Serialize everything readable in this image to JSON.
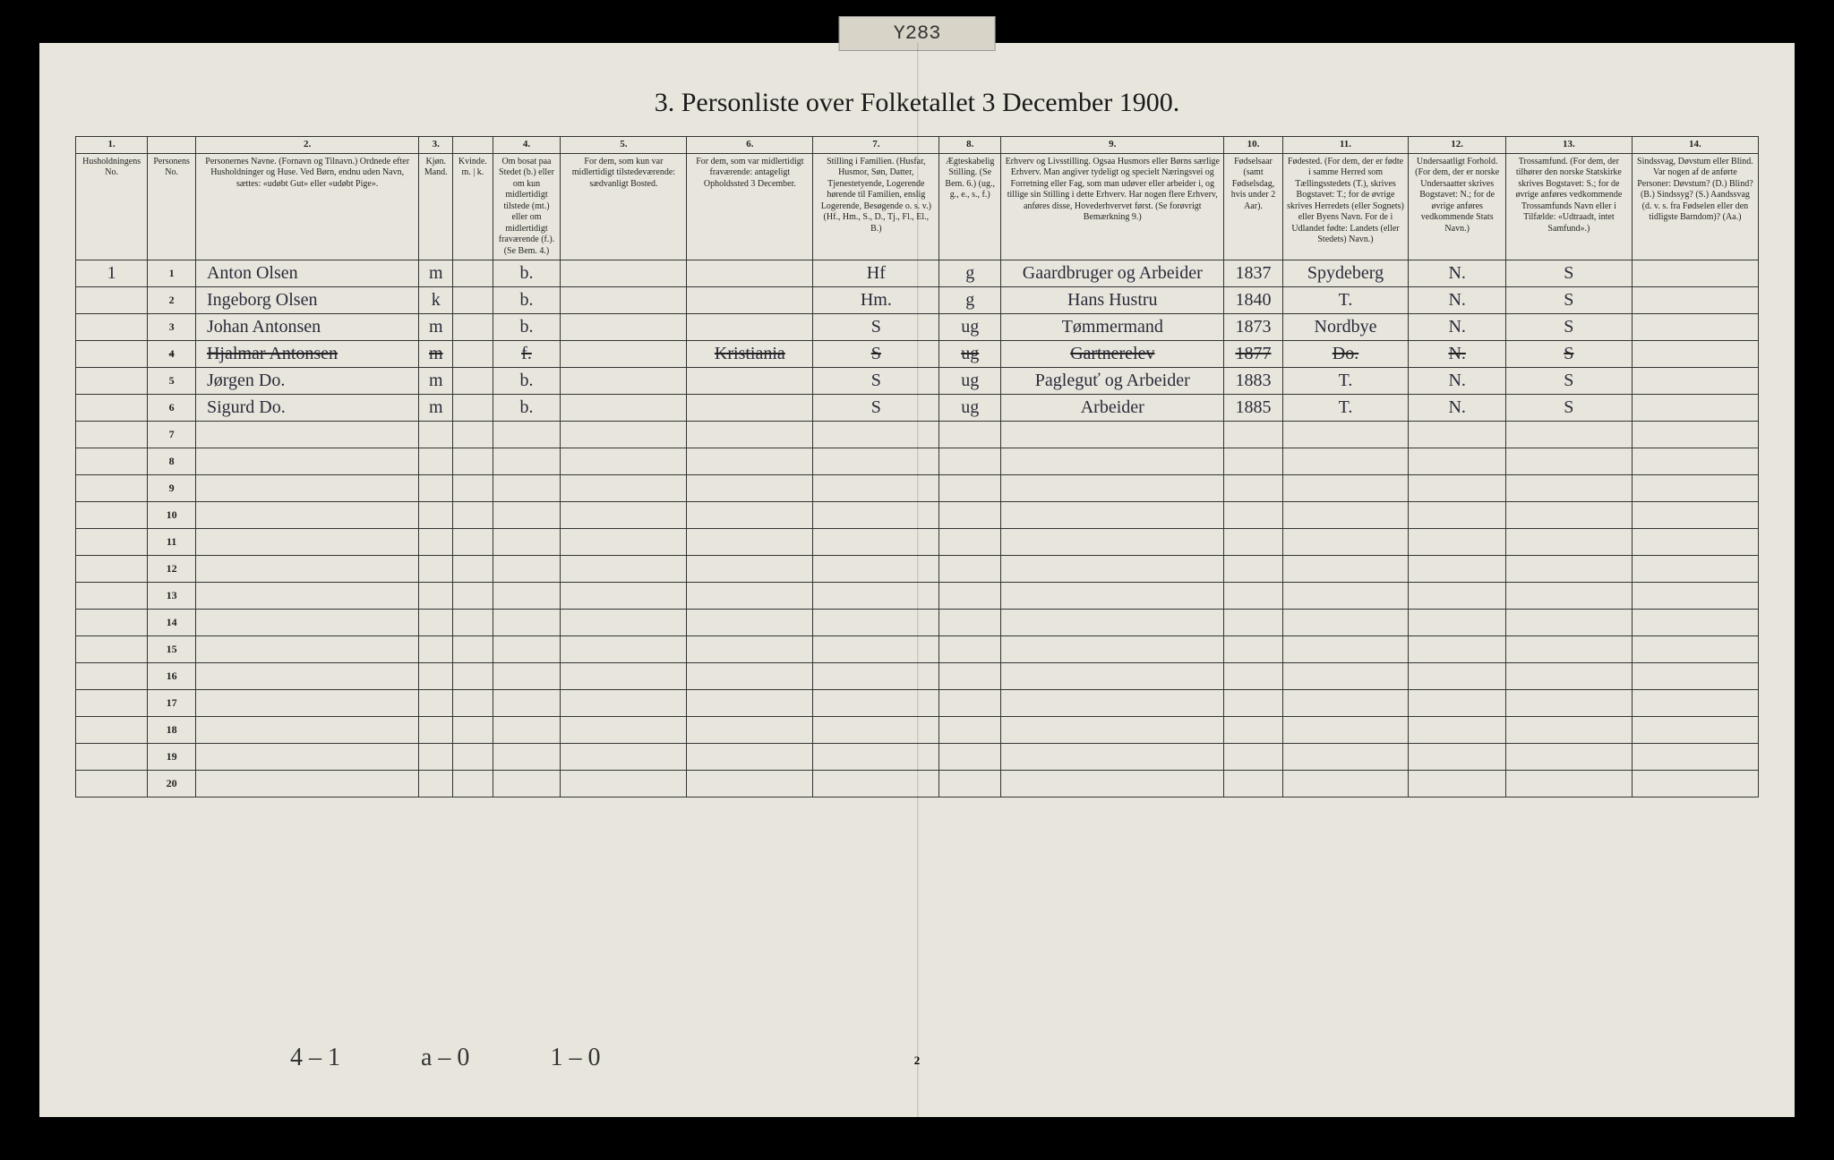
{
  "tab_label": "Y283",
  "title": "3. Personliste over Folketallet 3 December 1900.",
  "page_number": "2",
  "footer_tallies": [
    "4 – 1",
    "a – 0",
    "1 – 0"
  ],
  "column_numbers": [
    "1.",
    "",
    "2.",
    "3.",
    "",
    "4.",
    "5.",
    "6.",
    "7.",
    "8.",
    "9.",
    "10.",
    "11.",
    "12.",
    "13.",
    "14."
  ],
  "headers": [
    "Husholdningens No.",
    "Personens No.",
    "Personernes Navne.\n(Fornavn og Tilnavn.)\nOrdnede efter Husholdninger og Huse.\nVed Børn, endnu uden Navn, sættes: «udøbt Gut» eller «udøbt Pige».",
    "Kjøn.\nMand.",
    "Kvinde.\nm. | k.",
    "Om bosat paa Stedet (b.) eller om kun midlertidigt tilstede (mt.) eller om midlertidigt fraværende (f.). (Se Bem. 4.)",
    "For dem, som kun var midlertidigt tilstedeværende:\nsædvanligt Bosted.",
    "For dem, som var midlertidigt fraværende:\nantageligt Opholdssted 3 December.",
    "Stilling i Familien.\n(Husfar, Husmor, Søn, Datter, Tjenestetyende, Logerende hørende til Familien, enslig Logerende, Besøgende o. s. v.)\n(Hf., Hm., S., D., Tj., Fl., El., B.)",
    "Ægteskabelig Stilling.\n(Se Bem. 6.)\n(ug., g., e., s., f.)",
    "Erhverv og Livsstilling.\nOgsaa Husmors eller Børns særlige Erhverv. Man angiver tydeligt og specielt Næringsvei og Forretning eller Fag, som man udøver eller arbeider i, og tillige sin Stilling i dette Erhverv. Har nogen flere Erhverv, anføres disse, Hovederhvervet først.\n(Se forøvrigt Bemærkning 9.)",
    "Fødselsaar\n(samt Fødselsdag, hvis under 2 Aar).",
    "Fødested.\n(For dem, der er fødte i samme Herred som Tællingsstedets (T.), skrives Bogstavet: T.; for de øvrige skrives Herredets (eller Sognets) eller Byens Navn. For de i Udlandet fødte: Landets (eller Stedets) Navn.)",
    "Undersaatligt Forhold.\n(For dem, der er norske Undersaatter skrives Bogstavet: N.; for de øvrige anføres vedkommende Stats Navn.)",
    "Trossamfund.\n(For dem, der tilhører den norske Statskirke skrives Bogstavet: S.; for de øvrige anføres vedkommende Trossamfunds Navn eller i Tilfælde: «Udtraadt, intet Samfund».)",
    "Sindssvag, Døvstum eller Blind.\nVar nogen af de anførte Personer:\nDøvstum? (D.)\nBlind? (B.)\nSindssyg? (S.)\nAandssvag (d. v. s. fra Fødselen eller den tidligste Barndom)? (Aa.)"
  ],
  "rows": [
    {
      "hh": "1",
      "no": "1",
      "name": "Anton Olsen",
      "sex": "m",
      "res": "b.",
      "tmp": "",
      "abs": "",
      "fam": "Hf",
      "mar": "g",
      "occ": "Gaardbruger og Arbeider",
      "year": "1837",
      "birthplace": "Spydeberg",
      "nat": "N.",
      "faith": "S",
      "dis": ""
    },
    {
      "hh": "",
      "no": "2",
      "name": "Ingeborg Olsen",
      "sex": "k",
      "res": "b.",
      "tmp": "",
      "abs": "",
      "fam": "Hm.",
      "mar": "g",
      "occ": "Hans Hustru",
      "year": "1840",
      "birthplace": "T.",
      "nat": "N.",
      "faith": "S",
      "dis": ""
    },
    {
      "hh": "",
      "no": "3",
      "name": "Johan Antonsen",
      "sex": "m",
      "res": "b.",
      "tmp": "",
      "abs": "",
      "fam": "S",
      "mar": "ug",
      "occ": "Tømmermand",
      "year": "1873",
      "birthplace": "Nordbye",
      "nat": "N.",
      "faith": "S",
      "dis": ""
    },
    {
      "hh": "",
      "no": "4",
      "name": "Hjalmar Antonsen",
      "sex": "m",
      "res": "f.",
      "tmp": "",
      "abs": "Kristiania",
      "fam": "S",
      "mar": "ug",
      "occ": "Gartnerelev",
      "year": "1877",
      "birthplace": "Do.",
      "nat": "N.",
      "faith": "S",
      "dis": "",
      "struck": true
    },
    {
      "hh": "",
      "no": "5",
      "name": "Jørgen   Do.",
      "sex": "m",
      "res": "b.",
      "tmp": "",
      "abs": "",
      "fam": "S",
      "mar": "ug",
      "occ": "Pagleguť og Arbeider",
      "year": "1883",
      "birthplace": "T.",
      "nat": "N.",
      "faith": "S",
      "dis": ""
    },
    {
      "hh": "",
      "no": "6",
      "name": "Sigurd   Do.",
      "sex": "m",
      "res": "b.",
      "tmp": "",
      "abs": "",
      "fam": "S",
      "mar": "ug",
      "occ": "Arbeider",
      "year": "1885",
      "birthplace": "T.",
      "nat": "N.",
      "faith": "S",
      "dis": ""
    }
  ],
  "empty_rows": 14,
  "colors": {
    "paper": "#e8e6dc",
    "ink": "#1a1a1a",
    "handwriting": "#2a2a3a",
    "border": "#333333",
    "background": "#000000"
  }
}
